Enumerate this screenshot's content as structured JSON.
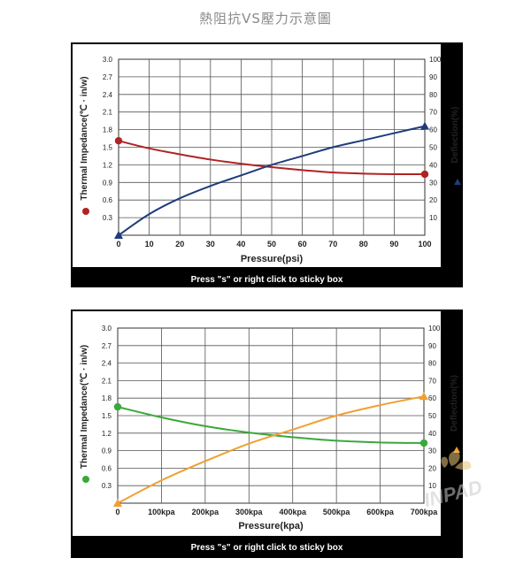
{
  "page_title": "熱阻抗VS壓力示意圖",
  "watermark_text": "INPAD",
  "chart_data": [
    {
      "type": "line",
      "caption": "Press \"s\" or right click to sticky box",
      "xlabel": "Pressure(psi)",
      "ylabel_left": "Thermal Impedance(℃ · in/w)",
      "ylabel_right": "Deflection(%)",
      "x_tick_labels": [
        "0",
        "10",
        "20",
        "30",
        "40",
        "50",
        "60",
        "70",
        "80",
        "90",
        "100"
      ],
      "x_ticks": [
        0,
        10,
        20,
        30,
        40,
        50,
        60,
        70,
        80,
        90,
        100
      ],
      "xlim": [
        0,
        100
      ],
      "y_left_ticks": [
        "0.3",
        "0.6",
        "0.9",
        "1.2",
        "1.5",
        "1.8",
        "2.1",
        "2.4",
        "2.7",
        "3.0"
      ],
      "ylim_left": [
        0,
        3.0
      ],
      "y_right_ticks": [
        "10",
        "20",
        "30",
        "40",
        "50",
        "60",
        "70",
        "80",
        "90",
        "100"
      ],
      "ylim_right": [
        0,
        100
      ],
      "grid": true,
      "series": [
        {
          "axis": "left",
          "color": "#b22222",
          "marker": "circle",
          "x": [
            0,
            10,
            20,
            30,
            40,
            50,
            60,
            70,
            80,
            90,
            100
          ],
          "values": [
            1.61,
            1.48,
            1.38,
            1.29,
            1.22,
            1.16,
            1.11,
            1.07,
            1.05,
            1.04,
            1.04
          ]
        },
        {
          "axis": "right",
          "color": "#1f3c7a",
          "marker": "triangle",
          "x": [
            0,
            10,
            20,
            30,
            40,
            50,
            60,
            70,
            80,
            90,
            100
          ],
          "values": [
            0,
            12,
            21,
            28,
            34,
            40,
            45,
            50,
            54,
            58,
            62
          ]
        }
      ]
    },
    {
      "type": "line",
      "caption": "Press \"s\" or right click to sticky box",
      "xlabel": "Pressure(kpa)",
      "ylabel_left": "Thermal Impedance(℃ · in/w)",
      "ylabel_right": "Deflection(%)",
      "x_tick_labels": [
        "0",
        "100kpa",
        "200kpa",
        "300kpa",
        "400kpa",
        "500kpa",
        "600kpa",
        "700kpa"
      ],
      "x_ticks": [
        0,
        100,
        200,
        300,
        400,
        500,
        600,
        700
      ],
      "xlim": [
        0,
        700
      ],
      "y_left_ticks": [
        "0.3",
        "0.6",
        "0.9",
        "1.2",
        "1.5",
        "1.8",
        "2.1",
        "2.4",
        "2.7",
        "3.0"
      ],
      "ylim_left": [
        0,
        3.0
      ],
      "y_right_ticks": [
        "10",
        "20",
        "30",
        "40",
        "50",
        "60",
        "70",
        "80",
        "90",
        "100"
      ],
      "ylim_right": [
        0,
        100
      ],
      "grid": true,
      "series": [
        {
          "axis": "left",
          "color": "#3aa83a",
          "marker": "circle",
          "x": [
            0,
            100,
            200,
            300,
            400,
            500,
            600,
            700
          ],
          "values": [
            1.65,
            1.47,
            1.32,
            1.21,
            1.13,
            1.07,
            1.04,
            1.03
          ],
          "end_markers": true
        },
        {
          "axis": "right",
          "color": "#f0a030",
          "marker": "triangle",
          "x": [
            0,
            100,
            200,
            300,
            400,
            500,
            600,
            700
          ],
          "values": [
            0,
            13,
            24,
            34,
            42,
            50,
            56,
            61
          ]
        }
      ]
    }
  ]
}
